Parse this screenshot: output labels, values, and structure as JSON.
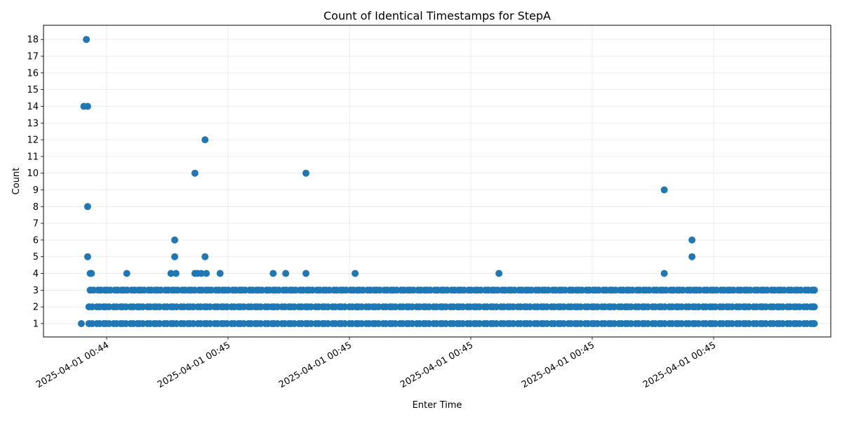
{
  "chart_data": {
    "type": "scatter",
    "title": "Count of Identical Timestamps for StepA",
    "xlabel": "Enter Time",
    "ylabel": "Count",
    "x_tick_labels": [
      "2025-04-01 00:44",
      "2025-04-01 00:45",
      "2025-04-01 00:45",
      "2025-04-01 00:45",
      "2025-04-01 00:45",
      "2025-04-01 00:45"
    ],
    "y_ticks": [
      1,
      2,
      3,
      4,
      5,
      6,
      7,
      8,
      9,
      10,
      11,
      12,
      13,
      14,
      15,
      16,
      17,
      18
    ],
    "ylim": [
      0.2,
      18.85
    ],
    "grid": true,
    "point_color": "#1f77b4",
    "x_unit": "seconds after 2025-04-01 00:44:00",
    "xlim": [
      -5.3,
      57.1
    ],
    "points": [
      {
        "x": -2.3,
        "y": 1
      },
      {
        "x": -2.1,
        "y": 14
      },
      {
        "x": -1.9,
        "y": 18
      },
      {
        "x": -1.8,
        "y": 14
      },
      {
        "x": -1.8,
        "y": 8
      },
      {
        "x": -1.8,
        "y": 5
      },
      {
        "x": -1.6,
        "y": 4
      },
      {
        "x": -1.5,
        "y": 4
      },
      {
        "x": 1.3,
        "y": 4
      },
      {
        "x": 4.8,
        "y": 4
      },
      {
        "x": 5.1,
        "y": 6
      },
      {
        "x": 5.1,
        "y": 5
      },
      {
        "x": 5.2,
        "y": 4
      },
      {
        "x": 6.7,
        "y": 10
      },
      {
        "x": 6.7,
        "y": 4
      },
      {
        "x": 6.9,
        "y": 4
      },
      {
        "x": 7.2,
        "y": 4
      },
      {
        "x": 7.5,
        "y": 12
      },
      {
        "x": 7.5,
        "y": 5
      },
      {
        "x": 7.6,
        "y": 4
      },
      {
        "x": 8.7,
        "y": 4
      },
      {
        "x": 12.9,
        "y": 4
      },
      {
        "x": 13.9,
        "y": 4
      },
      {
        "x": 15.5,
        "y": 10
      },
      {
        "x": 15.5,
        "y": 4
      },
      {
        "x": 19.4,
        "y": 4
      },
      {
        "x": 30.8,
        "y": 4
      },
      {
        "x": 43.9,
        "y": 9
      },
      {
        "x": 43.9,
        "y": 4
      },
      {
        "x": 46.1,
        "y": 6
      },
      {
        "x": 46.1,
        "y": 5
      }
    ],
    "dense_rows": [
      {
        "y": 1,
        "x_start": -1.7,
        "x_end": 55.8
      },
      {
        "y": 2,
        "x_start": -1.7,
        "x_end": 55.8
      },
      {
        "y": 3,
        "x_start": -1.6,
        "x_end": 55.8
      }
    ]
  }
}
